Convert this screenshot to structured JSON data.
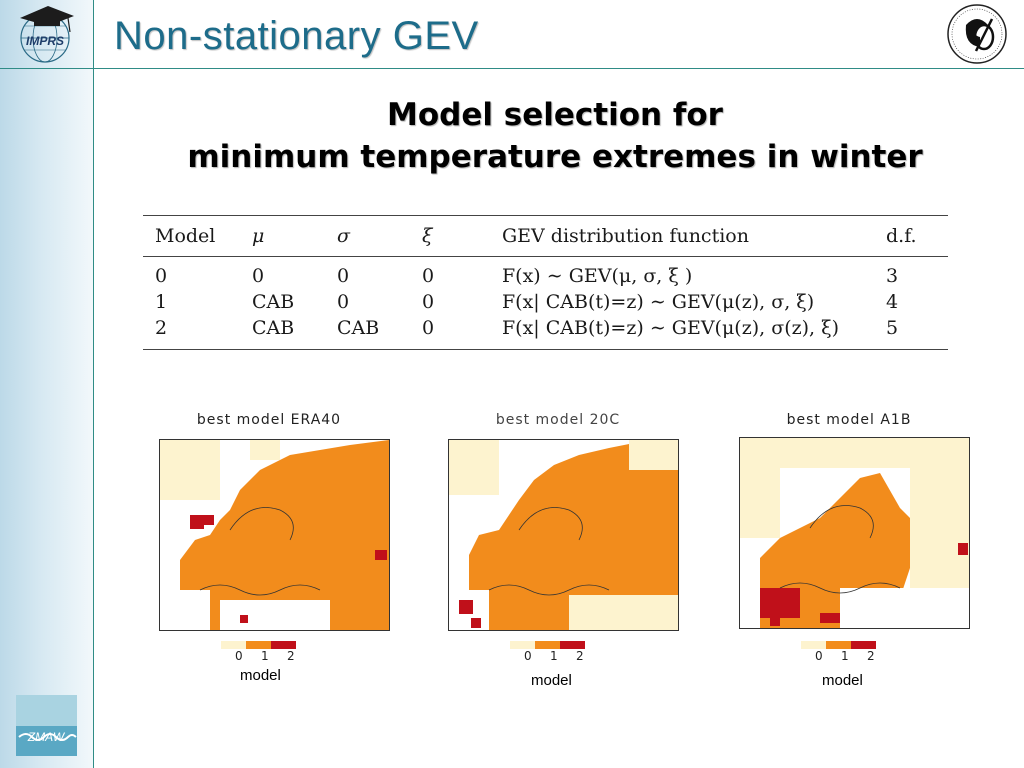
{
  "slide": {
    "title": "Non-stationary GEV",
    "subtitle_line1": "Model selection for",
    "subtitle_line2": "minimum temperature extremes in winter"
  },
  "logos": {
    "left_top": "IMPRS",
    "left_bottom": "ZMAW"
  },
  "table": {
    "headers": [
      "Model",
      "μ",
      "σ",
      "ξ",
      "GEV distribution function",
      "d.f."
    ],
    "rows": [
      [
        "0",
        "0",
        "0",
        "0",
        "F(x) ∼ GEV(μ, σ, ξ )",
        "3"
      ],
      [
        "1",
        "CAB",
        "0",
        "0",
        "F(x| CAB(t)=z) ∼ GEV(μ(z), σ, ξ)",
        "4"
      ],
      [
        "2",
        "CAB",
        "CAB",
        "0",
        "F(x| CAB(t)=z) ∼ GEV(μ(z), σ(z), ξ)",
        "5"
      ]
    ]
  },
  "colors": {
    "title": "#1d6c8a",
    "accent_rule": "#2f8c86",
    "model0": "#fdf3cf",
    "model1": "#f28c1c",
    "model2": "#c0101a"
  },
  "maps": [
    {
      "title": "best model ERA40",
      "colorbar_ticks": [
        "0",
        "1",
        "2"
      ],
      "colorbar_label": "model"
    },
    {
      "title": "best model 20C",
      "colorbar_ticks": [
        "0",
        "1",
        "2"
      ],
      "colorbar_label": "model"
    },
    {
      "title": "best model A1B",
      "colorbar_ticks": [
        "0",
        "1",
        "2"
      ],
      "colorbar_label": "model"
    }
  ]
}
